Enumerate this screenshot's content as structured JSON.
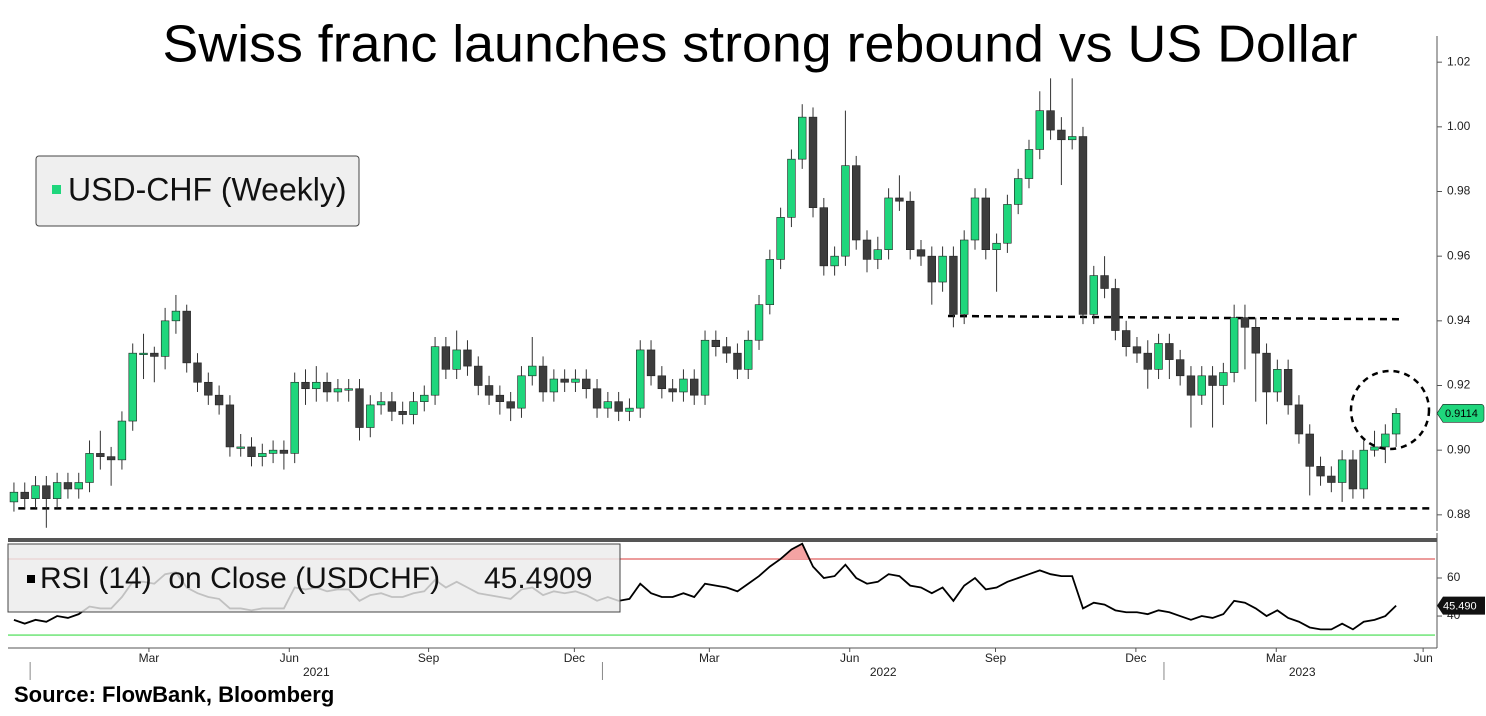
{
  "chart_data": [
    {
      "type": "candlestick",
      "title": "Swiss franc launches strong rebound vs US Dollar",
      "legend": "USD-CHF (Weekly)",
      "up_color": "#1fd67c",
      "down_color": "#3d3d3d",
      "xlim": [
        -0.55,
        131.6
      ],
      "ylim": [
        0.875,
        1.025
      ],
      "yticks": [
        0.88,
        {
          "value": 0.9,
          "label": "0.90"
        },
        0.92,
        0.94,
        0.96,
        0.98,
        {
          "value": 1.0,
          "label": "1.00"
        },
        1.02
      ],
      "open": [
        0.884,
        0.887,
        0.885,
        0.889,
        0.885,
        0.89,
        0.888,
        0.89,
        0.899,
        0.898,
        0.897,
        0.909,
        0.93,
        0.93,
        0.929,
        0.94,
        0.943,
        0.927,
        0.921,
        0.917,
        0.914,
        0.901,
        0.901,
        0.898,
        0.899,
        0.9,
        0.899,
        0.921,
        0.919,
        0.921,
        0.918,
        0.919,
        0.919,
        0.907,
        0.914,
        0.915,
        0.912,
        0.911,
        0.915,
        0.917,
        0.932,
        0.925,
        0.931,
        0.926,
        0.92,
        0.917,
        0.915,
        0.913,
        0.923,
        0.926,
        0.918,
        0.922,
        0.921,
        0.922,
        0.919,
        0.913,
        0.915,
        0.912,
        0.913,
        0.931,
        0.923,
        0.919,
        0.918,
        0.922,
        0.917,
        0.934,
        0.932,
        0.93,
        0.925,
        0.934,
        0.945,
        0.959,
        0.972,
        0.99,
        1.003,
        0.975,
        0.957,
        0.96,
        0.988,
        0.965,
        0.959,
        0.962,
        0.978,
        0.977,
        0.962,
        0.96,
        0.952,
        0.96,
        0.942,
        0.965,
        0.978,
        0.962,
        0.964,
        0.976,
        0.984,
        0.993,
        1.005,
        0.999,
        0.996,
        0.997,
        0.942,
        0.954,
        0.95,
        0.937,
        0.932,
        0.93,
        0.925,
        0.933,
        0.928,
        0.923,
        0.917,
        0.923,
        0.92,
        0.924,
        0.941,
        0.938,
        0.93,
        0.918,
        0.925,
        0.914,
        0.905,
        0.895,
        0.892,
        0.89,
        0.897,
        0.888,
        0.9,
        0.901,
        0.905
      ],
      "high": [
        0.89,
        0.89,
        0.892,
        0.892,
        0.893,
        0.893,
        0.893,
        0.903,
        0.906,
        0.901,
        0.912,
        0.933,
        0.936,
        0.932,
        0.944,
        0.948,
        0.945,
        0.93,
        0.924,
        0.92,
        0.917,
        0.905,
        0.904,
        0.902,
        0.903,
        0.903,
        0.924,
        0.925,
        0.926,
        0.924,
        0.922,
        0.922,
        0.922,
        0.917,
        0.918,
        0.918,
        0.915,
        0.918,
        0.92,
        0.935,
        0.935,
        0.937,
        0.934,
        0.929,
        0.923,
        0.92,
        0.918,
        0.926,
        0.935,
        0.929,
        0.925,
        0.925,
        0.925,
        0.925,
        0.922,
        0.918,
        0.918,
        0.916,
        0.934,
        0.934,
        0.926,
        0.922,
        0.925,
        0.925,
        0.937,
        0.937,
        0.935,
        0.933,
        0.937,
        0.948,
        0.962,
        0.975,
        0.993,
        1.007,
        1.006,
        0.978,
        0.963,
        1.005,
        0.991,
        0.968,
        0.966,
        0.981,
        0.985,
        0.98,
        0.965,
        0.963,
        0.963,
        0.963,
        0.968,
        0.981,
        0.981,
        0.967,
        0.979,
        0.987,
        0.996,
        1.011,
        1.015,
        1.003,
        1.015,
        1.0,
        0.957,
        0.96,
        0.953,
        0.94,
        0.935,
        0.934,
        0.936,
        0.936,
        0.931,
        0.926,
        0.926,
        0.926,
        0.927,
        0.945,
        0.945,
        0.941,
        0.933,
        0.928,
        0.928,
        0.917,
        0.908,
        0.898,
        0.895,
        0.9,
        0.9,
        0.903,
        0.906,
        0.908,
        0.913
      ],
      "low": [
        0.881,
        0.882,
        0.882,
        0.876,
        0.882,
        0.885,
        0.885,
        0.887,
        0.894,
        0.889,
        0.894,
        0.906,
        0.922,
        0.921,
        0.925,
        0.936,
        0.924,
        0.918,
        0.914,
        0.911,
        0.898,
        0.898,
        0.895,
        0.895,
        0.896,
        0.894,
        0.896,
        0.914,
        0.915,
        0.915,
        0.915,
        0.915,
        0.903,
        0.904,
        0.911,
        0.909,
        0.908,
        0.908,
        0.912,
        0.914,
        0.922,
        0.922,
        0.923,
        0.917,
        0.914,
        0.911,
        0.909,
        0.91,
        0.92,
        0.915,
        0.915,
        0.918,
        0.918,
        0.916,
        0.91,
        0.91,
        0.909,
        0.909,
        0.91,
        0.92,
        0.916,
        0.915,
        0.915,
        0.914,
        0.914,
        0.929,
        0.927,
        0.922,
        0.922,
        0.931,
        0.942,
        0.956,
        0.969,
        0.987,
        0.972,
        0.954,
        0.954,
        0.957,
        0.962,
        0.955,
        0.956,
        0.959,
        0.974,
        0.959,
        0.957,
        0.945,
        0.949,
        0.938,
        0.939,
        0.962,
        0.959,
        0.949,
        0.961,
        0.973,
        0.981,
        0.99,
        0.996,
        0.982,
        0.993,
        0.939,
        0.939,
        0.947,
        0.934,
        0.929,
        0.927,
        0.919,
        0.922,
        0.922,
        0.92,
        0.907,
        0.914,
        0.907,
        0.914,
        0.921,
        0.925,
        0.915,
        0.908,
        0.915,
        0.911,
        0.902,
        0.886,
        0.889,
        0.887,
        0.884,
        0.885,
        0.885,
        0.898,
        0.896,
        0.901
      ],
      "close": [
        0.887,
        0.885,
        0.889,
        0.885,
        0.89,
        0.888,
        0.89,
        0.899,
        0.898,
        0.897,
        0.909,
        0.93,
        0.93,
        0.929,
        0.94,
        0.943,
        0.927,
        0.921,
        0.917,
        0.914,
        0.901,
        0.901,
        0.898,
        0.899,
        0.9,
        0.899,
        0.921,
        0.919,
        0.921,
        0.918,
        0.919,
        0.919,
        0.907,
        0.914,
        0.915,
        0.912,
        0.911,
        0.915,
        0.917,
        0.932,
        0.925,
        0.931,
        0.926,
        0.92,
        0.917,
        0.915,
        0.913,
        0.923,
        0.926,
        0.918,
        0.922,
        0.921,
        0.922,
        0.919,
        0.913,
        0.915,
        0.912,
        0.913,
        0.931,
        0.923,
        0.919,
        0.918,
        0.922,
        0.917,
        0.934,
        0.932,
        0.93,
        0.925,
        0.934,
        0.945,
        0.959,
        0.972,
        0.99,
        1.003,
        0.975,
        0.957,
        0.96,
        0.988,
        0.965,
        0.959,
        0.962,
        0.978,
        0.977,
        0.962,
        0.96,
        0.952,
        0.96,
        0.942,
        0.965,
        0.978,
        0.962,
        0.964,
        0.976,
        0.984,
        0.993,
        1.005,
        0.999,
        0.996,
        0.997,
        0.942,
        0.954,
        0.95,
        0.937,
        0.932,
        0.93,
        0.925,
        0.933,
        0.928,
        0.923,
        0.917,
        0.923,
        0.92,
        0.924,
        0.941,
        0.938,
        0.93,
        0.918,
        0.925,
        0.914,
        0.905,
        0.895,
        0.892,
        0.89,
        0.897,
        0.888,
        0.9,
        0.901,
        0.905,
        0.9114
      ],
      "levels": [
        {
          "x": [
            0.4,
            131.5
          ],
          "y": [
            0.882,
            0.882
          ]
        },
        {
          "x": [
            86.5,
            128.3
          ],
          "y": [
            0.9415,
            0.9405
          ]
        }
      ]
    },
    {
      "type": "line",
      "legend": "RSI (14)  on Close (USDCHF)",
      "color": "#000000",
      "xlim": [
        -0.55,
        131.6
      ],
      "ylim": [
        23.2,
        78.4
      ],
      "yticks": [
        40,
        60
      ],
      "levels": [
        {
          "value": 70,
          "color": "#e06060"
        },
        {
          "value": 30,
          "color": "#3fdc4a"
        }
      ],
      "values": [
        38,
        36,
        38,
        37,
        40,
        39,
        41,
        45,
        44,
        44,
        50,
        58,
        58,
        57,
        62,
        63,
        55,
        52,
        50,
        49,
        44,
        44,
        43,
        44,
        44,
        44,
        55,
        54,
        55,
        53,
        54,
        54,
        48,
        51,
        52,
        50,
        50,
        52,
        53,
        59,
        55,
        58,
        55,
        52,
        51,
        50,
        49,
        54,
        55,
        51,
        53,
        52,
        53,
        51,
        48,
        50,
        48,
        49,
        57,
        52,
        50,
        50,
        52,
        50,
        57,
        56,
        55,
        53,
        57,
        61,
        66,
        70,
        75,
        78,
        66,
        60,
        61,
        67,
        60,
        57,
        58,
        62,
        61,
        56,
        55,
        52,
        55,
        48,
        56,
        60,
        54,
        55,
        58,
        60,
        62,
        64,
        62,
        61,
        61,
        44,
        47,
        46,
        43,
        42,
        42,
        41,
        43,
        42,
        40,
        38,
        40,
        39,
        41,
        48,
        47,
        44,
        40,
        43,
        39,
        37,
        34,
        33,
        33,
        36,
        33,
        37,
        38,
        40,
        45.4909
      ],
      "last_label": "45.490",
      "xticks": [
        {
          "value": 12.5,
          "label": "Mar"
        },
        {
          "value": 25.5,
          "label": "Jun"
        },
        {
          "value": 38.4,
          "label": "Sep"
        },
        {
          "value": 51.9,
          "label": "Dec"
        },
        {
          "value": 64.4,
          "label": "Mar"
        },
        {
          "value": 77.4,
          "label": "Jun"
        },
        {
          "value": 90.9,
          "label": "Sep"
        },
        {
          "value": 103.9,
          "label": "Dec"
        },
        {
          "value": 116.9,
          "label": "Mar"
        },
        {
          "value": 130.5,
          "label": "Jun"
        }
      ],
      "year_ticks": [
        {
          "value": 28,
          "label": "2021"
        },
        {
          "value": 80.5,
          "label": "2022"
        },
        {
          "value": 119.3,
          "label": "2023"
        }
      ],
      "year_boundaries": [
        1.5,
        54.5,
        106.5
      ]
    }
  ],
  "source": "Source: FlowBank, Bloomberg"
}
